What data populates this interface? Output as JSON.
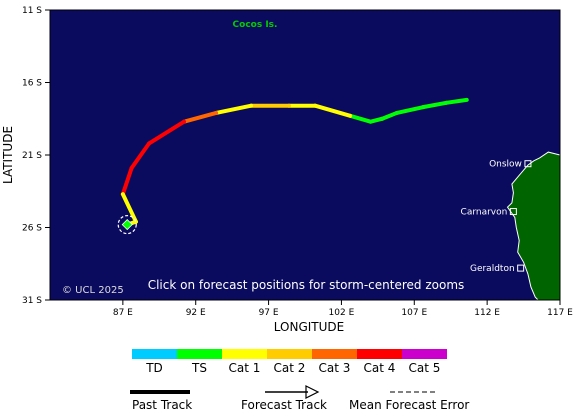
{
  "map": {
    "island_label": "Cocos Is.",
    "copyright": "© UCL 2025",
    "instruction": "Click on forecast positions for storm-centered zooms",
    "x_axis_label": "LONGITUDE",
    "y_axis_label": "LATITUDE",
    "lat_ticks": [
      "11 S",
      "16 S",
      "21 S",
      "26 S",
      "31 S"
    ],
    "lon_ticks": [
      "87 E",
      "92 E",
      "97 E",
      "102 E",
      "107 E",
      "112 E",
      "117 E"
    ],
    "extent": {
      "lon_min": 82,
      "lon_max": 117,
      "lat_north": 11,
      "lat_south": 31
    },
    "towns": [
      {
        "name": "Onslow",
        "lon": 114.8,
        "lat": 21.6
      },
      {
        "name": "Carnarvon",
        "lon": 113.8,
        "lat": 24.9
      },
      {
        "name": "Geraldton",
        "lon": 114.3,
        "lat": 28.8
      }
    ],
    "colors": {
      "ocean": "#0a0a5e",
      "land": "#006400",
      "island_label": "#00cc00",
      "TD": "#00ccff",
      "TS": "#00ff00",
      "Cat1": "#ffff00",
      "Cat2": "#ffcc00",
      "Cat3": "#ff6600",
      "Cat4": "#ff0000",
      "Cat5": "#cc00cc"
    },
    "track": [
      {
        "lon": 110.6,
        "lat": 17.2,
        "cat": "TS"
      },
      {
        "lon": 109.2,
        "lat": 17.4,
        "cat": "TS"
      },
      {
        "lon": 107.6,
        "lat": 17.7,
        "cat": "TS"
      },
      {
        "lon": 105.8,
        "lat": 18.1,
        "cat": "TS"
      },
      {
        "lon": 104.8,
        "lat": 18.5,
        "cat": "TS"
      },
      {
        "lon": 104.0,
        "lat": 18.7,
        "cat": "TS"
      },
      {
        "lon": 102.6,
        "lat": 18.3,
        "cat": "Cat1"
      },
      {
        "lon": 100.2,
        "lat": 17.6,
        "cat": "Cat1"
      },
      {
        "lon": 98.4,
        "lat": 17.6,
        "cat": "Cat2"
      },
      {
        "lon": 95.8,
        "lat": 17.6,
        "cat": "Cat1"
      },
      {
        "lon": 93.4,
        "lat": 18.1,
        "cat": "Cat3"
      },
      {
        "lon": 91.2,
        "lat": 18.7,
        "cat": "Cat4"
      },
      {
        "lon": 88.8,
        "lat": 20.2,
        "cat": "Cat4"
      },
      {
        "lon": 87.6,
        "lat": 21.9,
        "cat": "Cat4"
      },
      {
        "lon": 87.0,
        "lat": 23.7,
        "cat": "Cat1"
      },
      {
        "lon": 87.9,
        "lat": 25.6,
        "cat": "Cat1"
      },
      {
        "lon": 87.3,
        "lat": 25.8,
        "cat": "TS"
      }
    ],
    "current_position": {
      "lon": 87.3,
      "lat": 25.8
    },
    "coast": [
      [
        117,
        21.0
      ],
      [
        116.2,
        20.8
      ],
      [
        115.6,
        21.2
      ],
      [
        115.2,
        21.4
      ],
      [
        114.8,
        21.7
      ],
      [
        114.2,
        22.4
      ],
      [
        113.7,
        23.0
      ],
      [
        113.8,
        23.6
      ],
      [
        113.7,
        24.3
      ],
      [
        113.4,
        24.6
      ],
      [
        113.9,
        25.3
      ],
      [
        114.0,
        26.0
      ],
      [
        114.2,
        26.9
      ],
      [
        114.1,
        27.7
      ],
      [
        114.5,
        28.4
      ],
      [
        114.8,
        29.2
      ],
      [
        115.0,
        30.1
      ],
      [
        115.3,
        30.8
      ],
      [
        115.5,
        31.0
      ],
      [
        117,
        31.0
      ]
    ]
  },
  "legend": {
    "categories": [
      "TD",
      "TS",
      "Cat 1",
      "Cat 2",
      "Cat 3",
      "Cat 4",
      "Cat 5"
    ],
    "past_track": "Past Track",
    "forecast_track": "Forecast Track",
    "mean_error": "Mean Forecast Error"
  }
}
